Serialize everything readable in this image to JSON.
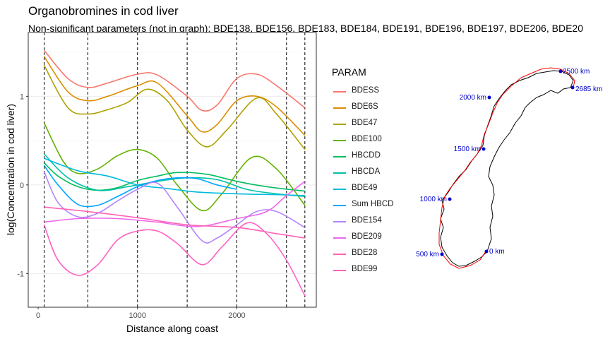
{
  "title": "Organobromines in cod liver",
  "subtitle": "Non-significant parameters (not in graph): BDE138, BDE156, BDE183, BDE184, BDE191, BDE196, BDE197, BDE206, BDE20",
  "legend_title": "PARAM",
  "chart_data": {
    "type": "line",
    "title": "Organobromines in cod liver",
    "xlabel": "Distance along coast",
    "ylabel": "log(Concentration in cod liver)",
    "xlim": [
      -100,
      2800
    ],
    "ylim": [
      -1.38,
      1.72
    ],
    "xticks": [
      0,
      1000,
      2000
    ],
    "yticks": [
      -1,
      0,
      1
    ],
    "grid": true,
    "legend_position": "right",
    "vlines": [
      60,
      500,
      1000,
      1500,
      2000,
      2500,
      2685
    ],
    "series": [
      {
        "name": "BDESS",
        "color": "#F8766D",
        "x": [
          60,
          300,
          500,
          700,
          1000,
          1200,
          1500,
          1650,
          1800,
          2000,
          2200,
          2400,
          2685
        ],
        "y": [
          1.52,
          1.2,
          1.1,
          1.15,
          1.25,
          1.24,
          1.0,
          0.84,
          0.9,
          1.2,
          1.25,
          1.12,
          0.87
        ]
      },
      {
        "name": "BDE6S",
        "color": "#DB8E00",
        "x": [
          60,
          300,
          500,
          700,
          1000,
          1200,
          1500,
          1650,
          1800,
          2000,
          2200,
          2400,
          2685
        ],
        "y": [
          1.45,
          1.05,
          0.95,
          1.0,
          1.12,
          1.15,
          0.78,
          0.6,
          0.68,
          0.95,
          1.0,
          0.88,
          0.56
        ]
      },
      {
        "name": "BDE47",
        "color": "#AEA200",
        "x": [
          60,
          300,
          500,
          700,
          900,
          1100,
          1300,
          1500,
          1700,
          1900,
          2200,
          2400,
          2685
        ],
        "y": [
          1.35,
          0.87,
          0.8,
          0.85,
          0.93,
          1.08,
          0.95,
          0.62,
          0.43,
          0.62,
          0.98,
          0.8,
          0.4
        ]
      },
      {
        "name": "BDE100",
        "color": "#64B200",
        "x": [
          60,
          250,
          400,
          600,
          800,
          1000,
          1200,
          1400,
          1650,
          1850,
          2150,
          2400,
          2685
        ],
        "y": [
          0.7,
          0.27,
          0.13,
          0.18,
          0.33,
          0.4,
          0.3,
          0.0,
          -0.29,
          -0.1,
          0.31,
          0.18,
          -0.23
        ]
      },
      {
        "name": "HBCDD",
        "color": "#00BD5C",
        "x": [
          60,
          200,
          400,
          600,
          800,
          1000,
          1200,
          1400,
          1700,
          2000,
          2300,
          2685
        ],
        "y": [
          0.25,
          0.1,
          -0.02,
          -0.06,
          -0.03,
          0.05,
          0.1,
          0.14,
          0.12,
          0.04,
          -0.02,
          -0.07
        ]
      },
      {
        "name": "HBCDA",
        "color": "#00C1A7",
        "x": [
          60,
          300,
          600,
          900,
          1200,
          1500,
          1800,
          2100,
          2400,
          2685
        ],
        "y": [
          0.35,
          0.08,
          -0.06,
          -0.02,
          0.04,
          0.08,
          0.06,
          -0.05,
          -0.1,
          -0.13
        ]
      },
      {
        "name": "BDE49",
        "color": "#00BADE",
        "x": [
          60,
          400,
          700,
          1000,
          1300,
          1600,
          2000,
          2400,
          2685
        ],
        "y": [
          0.3,
          0.16,
          0.1,
          0.0,
          -0.04,
          -0.08,
          -0.1,
          -0.11,
          -0.12
        ]
      },
      {
        "name": "Sum HBCD",
        "color": "#00A6FF",
        "x": [
          60,
          200,
          400,
          600,
          800,
          1000,
          1200,
          1400,
          1600,
          1800,
          2000
        ],
        "y": [
          0.22,
          0.0,
          -0.22,
          -0.23,
          -0.13,
          -0.02,
          0.05,
          0.08,
          0.07,
          0.0,
          -0.05
        ]
      },
      {
        "name": "BDE154",
        "color": "#B385FF",
        "x": [
          60,
          200,
          400,
          600,
          800,
          1000,
          1200,
          1400,
          1650,
          1800,
          2000,
          2200,
          2400,
          2685
        ],
        "y": [
          0.15,
          -0.2,
          -0.36,
          -0.32,
          -0.18,
          -0.05,
          0.02,
          -0.25,
          -0.63,
          -0.6,
          -0.45,
          -0.3,
          -0.3,
          -0.48
        ]
      },
      {
        "name": "BDE209",
        "color": "#EF67EB",
        "x": [
          60,
          400,
          800,
          1200,
          1600,
          2000,
          2300,
          2500,
          2685
        ],
        "y": [
          -0.42,
          -0.38,
          -0.38,
          -0.42,
          -0.47,
          -0.38,
          -0.3,
          -0.12,
          0.04
        ]
      },
      {
        "name": "BDE28",
        "color": "#FF63B6",
        "x": [
          60,
          500,
          1000,
          1500,
          2000,
          2400,
          2685
        ],
        "y": [
          -0.25,
          -0.3,
          -0.37,
          -0.45,
          -0.48,
          -0.55,
          -0.6
        ]
      },
      {
        "name": "BDE99",
        "color": "#FF61C3",
        "x": [
          60,
          200,
          400,
          600,
          800,
          1000,
          1200,
          1400,
          1650,
          1850,
          2100,
          2300,
          2500,
          2685
        ],
        "y": [
          -0.45,
          -0.85,
          -1.02,
          -0.9,
          -0.62,
          -0.52,
          -0.52,
          -0.66,
          -0.9,
          -0.7,
          -0.43,
          -0.55,
          -0.85,
          -1.25
        ]
      }
    ]
  },
  "map": {
    "labels": [
      {
        "text": "0 km",
        "km": 0
      },
      {
        "text": "500 km",
        "km": 500
      },
      {
        "text": "1000 km",
        "km": 1000
      },
      {
        "text": "1500 km",
        "km": 1500
      },
      {
        "text": "2000 km",
        "km": 2000
      },
      {
        "text": "2500 km",
        "km": 2500
      },
      {
        "text": "2685 km",
        "km": 2685
      }
    ],
    "point_color": "#0000cc",
    "route_color": "#ff0000",
    "coast_color": "#000000"
  }
}
